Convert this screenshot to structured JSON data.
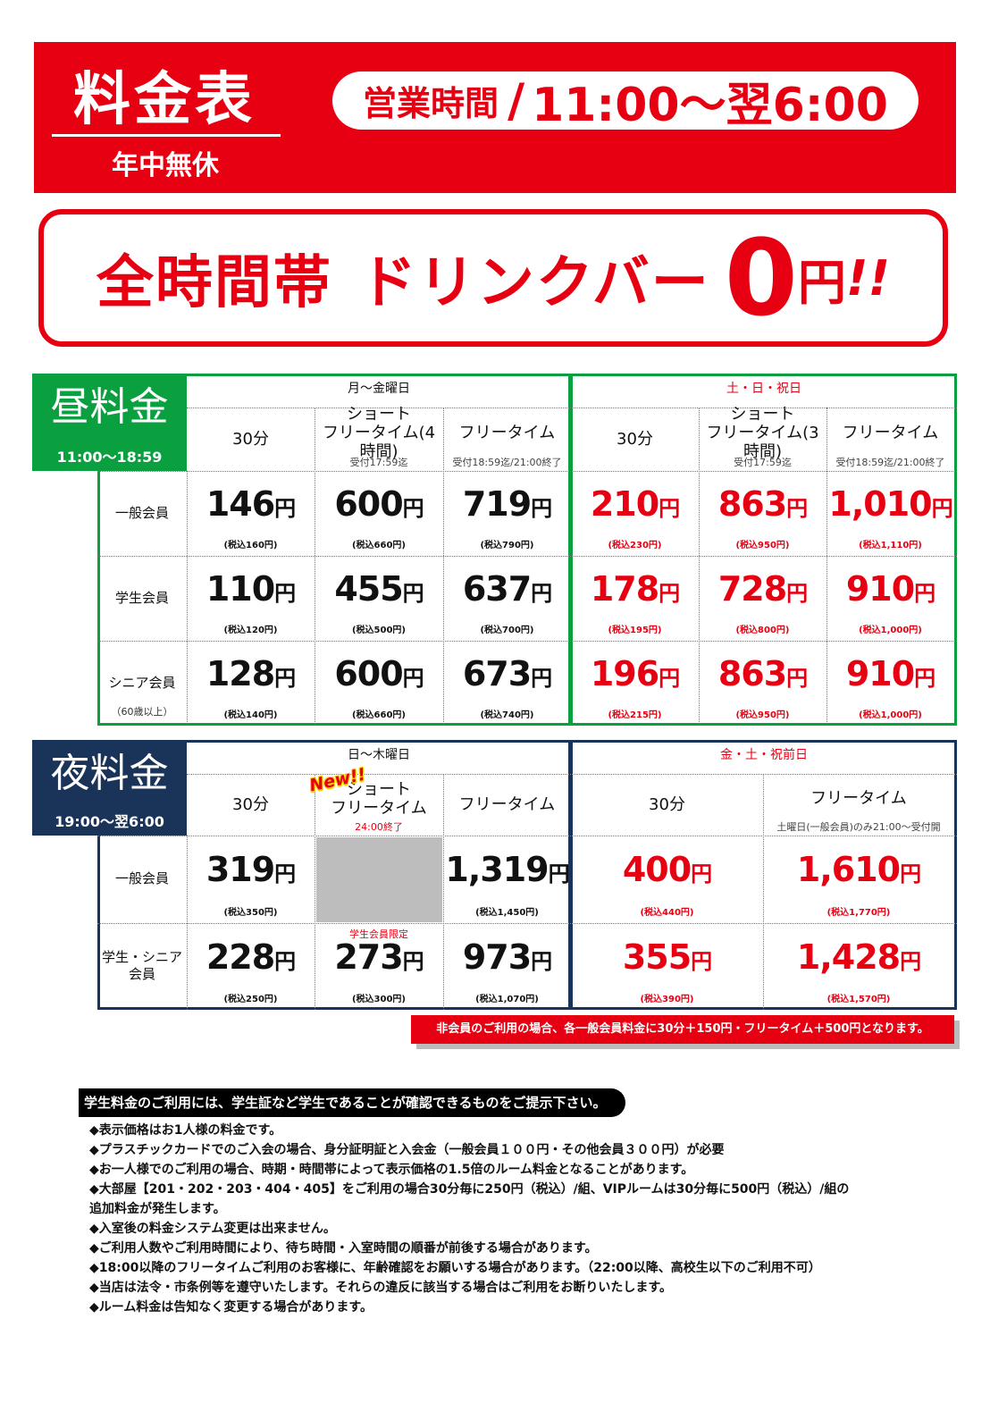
{
  "header": {
    "title": "料金表",
    "subtitle": "年中無休",
    "hours_label": "営業時間",
    "hours_sep": "/",
    "hours_value": "11:00〜翌6:00"
  },
  "banner": {
    "text1": "全時間帯",
    "text2": "ドリンクバー",
    "zero": "0",
    "yen": "円",
    "excl": "!!"
  },
  "day": {
    "label": "昼料金",
    "time": "11:00〜18:59",
    "weekday_head": "月〜金曜日",
    "weekend_head": "土・日・祝日",
    "cols": [
      {
        "title": "30分",
        "sub": ""
      },
      {
        "title": "ショート\nフリータイム(4時間)",
        "sub": "受付17:59迄"
      },
      {
        "title": "フリータイム",
        "sub": "受付18:59迄/21:00終了"
      },
      {
        "title": "30分",
        "sub": ""
      },
      {
        "title": "ショート\nフリータイム(3時間)",
        "sub": "受付17:59迄"
      },
      {
        "title": "フリータイム",
        "sub": "受付18:59迄/21:00終了"
      }
    ],
    "rows": [
      {
        "label": "一般会員",
        "note": "",
        "prices": [
          {
            "p": "146",
            "t": "(税込160円)"
          },
          {
            "p": "600",
            "t": "(税込660円)"
          },
          {
            "p": "719",
            "t": "(税込790円)"
          },
          {
            "p": "210",
            "t": "(税込230円)"
          },
          {
            "p": "863",
            "t": "(税込950円)"
          },
          {
            "p": "1,010",
            "t": "(税込1,110円)"
          }
        ]
      },
      {
        "label": "学生会員",
        "note": "",
        "prices": [
          {
            "p": "110",
            "t": "(税込120円)"
          },
          {
            "p": "455",
            "t": "(税込500円)"
          },
          {
            "p": "637",
            "t": "(税込700円)"
          },
          {
            "p": "178",
            "t": "(税込195円)"
          },
          {
            "p": "728",
            "t": "(税込800円)"
          },
          {
            "p": "910",
            "t": "(税込1,000円)"
          }
        ]
      },
      {
        "label": "シニア会員",
        "note": "（60歳以上）",
        "prices": [
          {
            "p": "128",
            "t": "(税込140円)"
          },
          {
            "p": "600",
            "t": "(税込660円)"
          },
          {
            "p": "673",
            "t": "(税込740円)"
          },
          {
            "p": "196",
            "t": "(税込215円)"
          },
          {
            "p": "863",
            "t": "(税込950円)"
          },
          {
            "p": "910",
            "t": "(税込1,000円)"
          }
        ]
      }
    ]
  },
  "night": {
    "label": "夜料金",
    "time": "19:00〜翌6:00",
    "weekday_head": "日〜木曜日",
    "weekend_head": "金・土・祝前日",
    "new_tag": "New!!",
    "cols": [
      {
        "title": "30分",
        "sub": ""
      },
      {
        "title": "ショート\nフリータイム",
        "sub": "24:00終了"
      },
      {
        "title": "フリータイム",
        "sub": ""
      },
      {
        "title": "30分",
        "sub": ""
      },
      {
        "title": "フリータイム",
        "sub": "土曜日(一般会員)のみ21:00〜受付開"
      }
    ],
    "rows": [
      {
        "label": "一般会員",
        "prices": [
          {
            "p": "319",
            "t": "(税込350円)"
          },
          null,
          {
            "p": "1,319",
            "t": "(税込1,450円)"
          },
          {
            "p": "400",
            "t": "(税込440円)"
          },
          {
            "p": "1,610",
            "t": "(税込1,770円)"
          }
        ]
      },
      {
        "label": "学生・シニア\n会員",
        "prices": [
          {
            "p": "228",
            "t": "(税込250円)"
          },
          {
            "p": "273",
            "t": "(税込300円)",
            "top": "学生会員限定"
          },
          {
            "p": "973",
            "t": "(税込1,070円)"
          },
          {
            "p": "355",
            "t": "(税込390円)"
          },
          {
            "p": "1,428",
            "t": "(税込1,570円)"
          }
        ]
      }
    ]
  },
  "yen": "円",
  "non_member": "非会員のご利用の場合、各一般会員料金に30分＋150円・フリータイム＋500円となります。",
  "notes_title": "学生料金のご利用には、学生証など学生であることが確認できるものをご提示下さい。",
  "notes": [
    "◆表示価格はお1人様の料金です。",
    "◆プラスチックカードでのご入会の場合、身分証明証と入会金（一般会員１００円・その他会員３００円）が必要",
    "◆お一人様でのご利用の場合、時期・時間帯によって表示価格の1.5倍のルーム料金となることがあります。",
    "◆大部屋【201・202・203・404・405】をご利用の場合30分毎に250円（税込）/組、VIPルームは30分毎に500円（税込）/組の",
    "追加料金が発生します。",
    "◆入室後の料金システム変更は出来ません。",
    "◆ご利用人数やご利用時間により、待ち時間・入室時間の順番が前後する場合があります。",
    "◆18:00以降のフリータイムご利用のお客様に、年齢確認をお願いする場合があります。（22:00以降、高校生以下のご利用不可）",
    "◆当店は法令・市条例等を遵守いたします。それらの違反に該当する場合はご利用をお断りいたします。",
    "◆ルーム料金は告知なく変更する場合があります。"
  ],
  "colors": {
    "red": "#e60012",
    "green": "#0aa040",
    "navy": "#1a3358",
    "gray": "#bdbdbd"
  }
}
